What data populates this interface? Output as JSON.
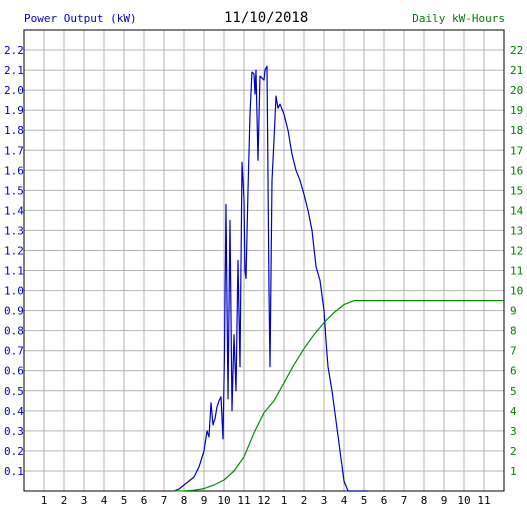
{
  "header": {
    "left_title": "Power Output (kW)",
    "date": "11/10/2018",
    "right_title": "Daily kW-Hours"
  },
  "colors": {
    "power": "#0000c8",
    "energy": "#009000",
    "grid": "#b4b4b4",
    "axis": "#000000",
    "left_label": "#0000c8",
    "right_label": "#008000"
  },
  "chart_data": {
    "type": "line",
    "grid": true,
    "x_range_hours": [
      0,
      24
    ],
    "xticks": [
      "1",
      "2",
      "3",
      "4",
      "5",
      "6",
      "7",
      "8",
      "9",
      "10",
      "11",
      "12",
      "1",
      "2",
      "3",
      "4",
      "5",
      "6",
      "7",
      "8",
      "9",
      "10",
      "11"
    ],
    "left_axis": {
      "label": "Power Output (kW)",
      "ylim": [
        0,
        2.3
      ],
      "ticks": [
        "0.1",
        "0.2",
        "0.3",
        "0.4",
        "0.5",
        "0.6",
        "0.7",
        "0.8",
        "0.9",
        "1.0",
        "1.1",
        "1.2",
        "1.3",
        "1.4",
        "1.5",
        "1.6",
        "1.7",
        "1.8",
        "1.9",
        "2.0",
        "2.1",
        "2.2"
      ]
    },
    "right_axis": {
      "label": "Daily kW-Hours",
      "ylim": [
        0,
        23
      ],
      "ticks": [
        "1",
        "2",
        "3",
        "4",
        "5",
        "6",
        "7",
        "8",
        "9",
        "10",
        "11",
        "12",
        "13",
        "14",
        "15",
        "16",
        "17",
        "18",
        "19",
        "20",
        "21",
        "22"
      ]
    },
    "series": [
      {
        "name": "Power Output (kW)",
        "axis": "left",
        "x": [
          7.5,
          7.75,
          8.0,
          8.25,
          8.5,
          8.75,
          9.0,
          9.15,
          9.25,
          9.35,
          9.45,
          9.55,
          9.65,
          9.75,
          9.85,
          9.95,
          10.02,
          10.1,
          10.2,
          10.3,
          10.4,
          10.5,
          10.6,
          10.7,
          10.8,
          10.9,
          10.95,
          11.0,
          11.05,
          11.1,
          11.2,
          11.3,
          11.4,
          11.5,
          11.55,
          11.6,
          11.7,
          11.8,
          11.9,
          12.0,
          12.05,
          12.15,
          12.25,
          12.3,
          12.4,
          12.5,
          12.6,
          12.7,
          12.8,
          13.0,
          13.2,
          13.4,
          13.6,
          13.8,
          14.0,
          14.2,
          14.4,
          14.6,
          14.8,
          15.0,
          15.1,
          15.2,
          15.4,
          15.6,
          15.8,
          16.0,
          16.2,
          16.4,
          16.6,
          16.8,
          16.95,
          17.05,
          17.2
        ],
        "y": [
          0.0,
          0.01,
          0.03,
          0.05,
          0.07,
          0.12,
          0.2,
          0.3,
          0.27,
          0.44,
          0.33,
          0.36,
          0.42,
          0.45,
          0.47,
          0.26,
          0.66,
          1.43,
          0.46,
          1.35,
          0.4,
          0.78,
          0.5,
          1.15,
          0.62,
          1.64,
          1.55,
          1.45,
          1.1,
          1.06,
          1.5,
          1.88,
          2.09,
          2.08,
          1.98,
          2.1,
          1.65,
          2.07,
          2.06,
          2.05,
          2.1,
          2.12,
          1.0,
          0.62,
          1.55,
          1.75,
          1.97,
          1.91,
          1.93,
          1.88,
          1.8,
          1.68,
          1.6,
          1.55,
          1.48,
          1.4,
          1.3,
          1.12,
          1.05,
          0.9,
          0.75,
          0.62,
          0.5,
          0.35,
          0.2,
          0.05,
          0.0,
          0.0,
          0.0,
          0.0,
          0.0,
          0.0,
          0.0
        ]
      },
      {
        "name": "Daily kW-Hours",
        "axis": "right",
        "x": [
          7.5,
          8.0,
          8.5,
          9.0,
          9.5,
          10.0,
          10.5,
          11.0,
          11.5,
          12.0,
          12.5,
          13.0,
          13.5,
          14.0,
          14.5,
          15.0,
          15.5,
          16.0,
          16.5,
          17.0,
          17.5,
          18.0,
          19.0,
          20.0,
          21.0,
          22.0,
          23.0,
          24.0
        ],
        "y": [
          0.0,
          0.01,
          0.04,
          0.12,
          0.3,
          0.55,
          1.0,
          1.7,
          2.9,
          3.9,
          4.5,
          5.4,
          6.3,
          7.1,
          7.8,
          8.4,
          8.9,
          9.3,
          9.5,
          9.5,
          9.5,
          9.5,
          9.5,
          9.5,
          9.5,
          9.5,
          9.5,
          9.5
        ]
      }
    ]
  }
}
